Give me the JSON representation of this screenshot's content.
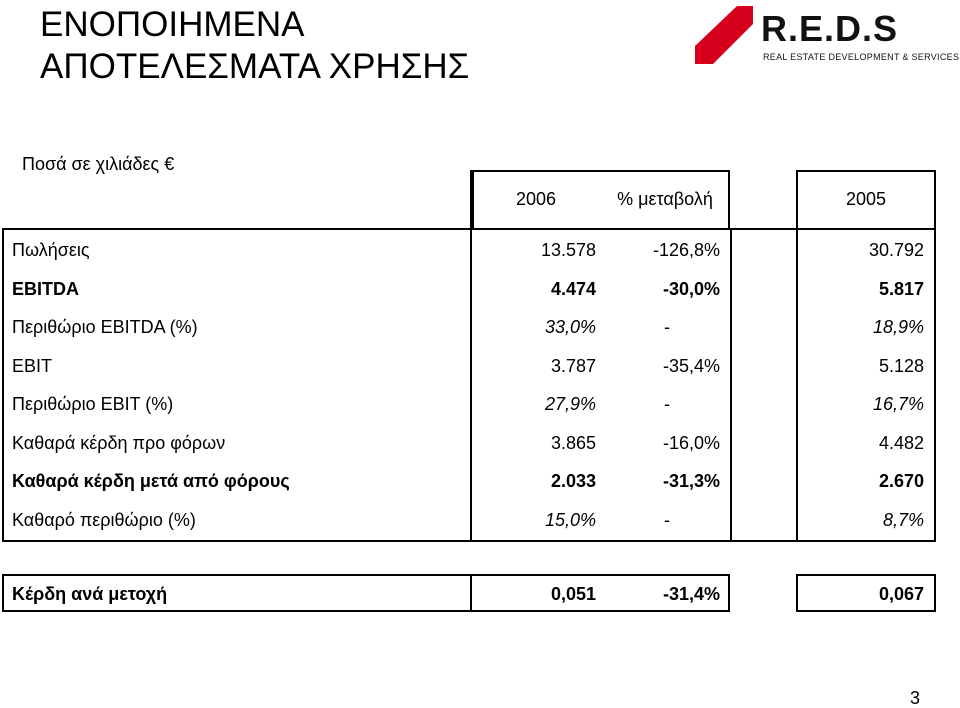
{
  "header": {
    "title_line1": "ΕΝΟΠΟΙΗΜΕΝΑ",
    "title_line2": "ΑΠΟΤΕΛΕΣΜΑΤΑ ΧΡΗΣΗΣ",
    "logo_name": "R.E.D.S",
    "logo_tagline": "REAL ESTATE DEVELOPMENT & SERVICES",
    "logo_color": "#d6001c"
  },
  "units_label": "Ποσά σε χιλιάδες €",
  "columns": {
    "y2006": "2006",
    "pct_change": "% μεταβολή",
    "y2005": "2005"
  },
  "rows": [
    {
      "label": "Πωλήσεις",
      "v2006": "13.578",
      "pct": "-126,8%",
      "v2005": "30.792",
      "style": "normal"
    },
    {
      "label": "EBITDA",
      "v2006": "4.474",
      "pct": "-30,0%",
      "v2005": "5.817",
      "style": "bold"
    },
    {
      "label": "Περιθώριο EBITDA  (%)",
      "v2006": "33,0%",
      "pct": "-",
      "v2005": "18,9%",
      "style": "italic"
    },
    {
      "label": "EBIT",
      "v2006": "3.787",
      "pct": "-35,4%",
      "v2005": "5.128",
      "style": "normal"
    },
    {
      "label": "Περιθώριο EBIT  (%)",
      "v2006": "27,9%",
      "pct": "-",
      "v2005": "16,7%",
      "style": "italic"
    },
    {
      "label": "Καθαρά κέρδη προ φόρων",
      "v2006": "3.865",
      "pct": "-16,0%",
      "v2005": "4.482",
      "style": "normal"
    },
    {
      "label": "Καθαρά κέρδη μετά από  φόρους",
      "v2006": "2.033",
      "pct": "-31,3%",
      "v2005": "2.670",
      "style": "bold"
    },
    {
      "label": "Καθαρό περιθώριο  (%)",
      "v2006": "15,0%",
      "pct": "-",
      "v2005": "8,7%",
      "style": "italic"
    }
  ],
  "eps": {
    "label": "Κέρδη ανά μετοχή",
    "v2006": "0,051",
    "pct": "-31,4%",
    "v2005": "0,067"
  },
  "page_number": "3"
}
